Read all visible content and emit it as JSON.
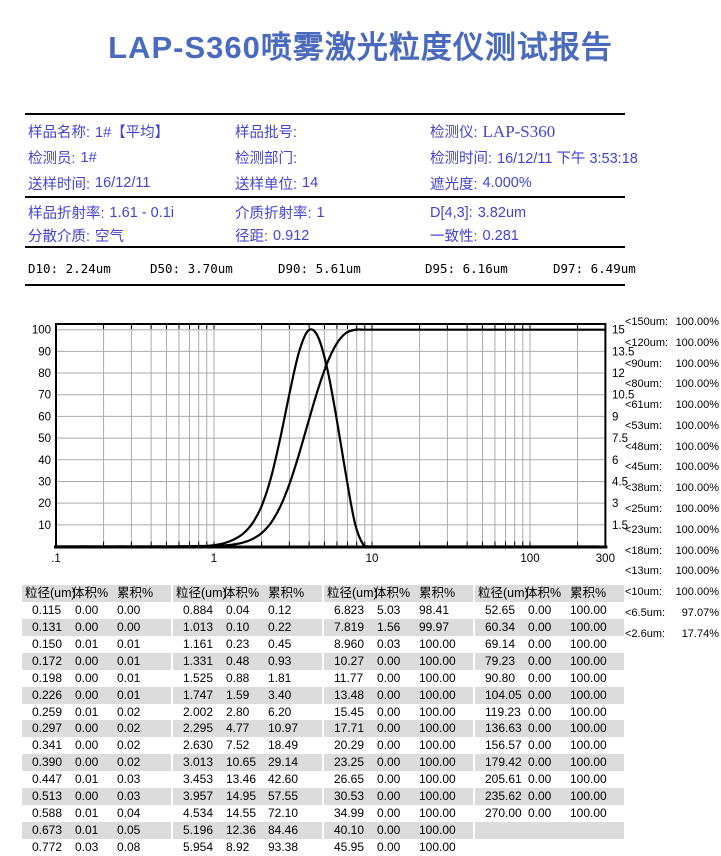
{
  "page": {
    "title": "LAP-S360喷雾激光粒度仪测试报告"
  },
  "colors": {
    "title_blue": "#4a6bbd",
    "info_text": "#4343d0",
    "grid_gray": "#ababab",
    "stripe_gray": "#dcdcdc",
    "curve_black": "#000000"
  },
  "info": {
    "rows": [
      [
        {
          "label": "样品名称:",
          "value": "1#【平均】"
        },
        {
          "label": "样品批号:",
          "value": ""
        },
        {
          "label": "检测仪:",
          "value": "LAP-S360",
          "serif": true
        }
      ],
      [
        {
          "label": "检测员:",
          "value": "1#"
        },
        {
          "label": "检测部门:",
          "value": ""
        },
        {
          "label": "检测时间:",
          "value": "16/12/11 下午 3:53:18"
        }
      ],
      [
        {
          "label": "送样时间:",
          "value": "16/12/11"
        },
        {
          "label": "送样单位:",
          "value": "14"
        },
        {
          "label": "遮光度:",
          "value": "4.000%"
        }
      ]
    ]
  },
  "optics": {
    "rows": [
      [
        {
          "label": "样品折射率:",
          "value": "1.61 - 0.1i"
        },
        {
          "label": "介质折射率:",
          "value": "1"
        },
        {
          "label": "D[4,3]:",
          "value": "3.82um"
        }
      ],
      [
        {
          "label": "分散介质:",
          "value": "空气"
        },
        {
          "label": "径距:",
          "value": "0.912"
        },
        {
          "label": "一致性:",
          "value": "0.281"
        }
      ]
    ]
  },
  "d_values": [
    {
      "label": "D10:",
      "value": "2.24um",
      "x": 28
    },
    {
      "label": "D50:",
      "value": "3.70um",
      "x": 150
    },
    {
      "label": "D90:",
      "value": "5.61um",
      "x": 278
    },
    {
      "label": "D95:",
      "value": "6.16um",
      "x": 425
    },
    {
      "label": "D97:",
      "value": "6.49um",
      "x": 553
    }
  ],
  "chart_data": {
    "type": "line",
    "title": "",
    "x_axis": {
      "scale": "log",
      "min": 0.1,
      "max": 300,
      "ticks": [
        0.1,
        1,
        10,
        100,
        300
      ],
      "tick_labels": [
        ".1",
        "1",
        "10",
        "100",
        "300"
      ],
      "grid": true
    },
    "y_left": {
      "min": 0,
      "max": 102.7,
      "ticks": [
        10,
        20,
        30,
        40,
        50,
        60,
        70,
        80,
        90,
        100
      ],
      "grid": true
    },
    "y_right": {
      "min": 0,
      "max": 15.4,
      "ticks": [
        1.5,
        3,
        4.5,
        6,
        7.5,
        9,
        10.5,
        12,
        13.5,
        15
      ]
    },
    "x": [
      0.115,
      0.131,
      0.15,
      0.172,
      0.198,
      0.226,
      0.259,
      0.297,
      0.341,
      0.39,
      0.447,
      0.513,
      0.588,
      0.673,
      0.772,
      0.884,
      1.013,
      1.161,
      1.331,
      1.525,
      1.747,
      2.002,
      2.295,
      2.63,
      3.013,
      3.453,
      3.957,
      4.534,
      5.196,
      5.954,
      6.823,
      7.819,
      8.96,
      10.27,
      11.77,
      13.48,
      15.45,
      17.71,
      20.29,
      23.25,
      26.65,
      30.53,
      34.99,
      40.1,
      45.95,
      52.65,
      60.34,
      69.14,
      79.23,
      90.8,
      104.05,
      119.23,
      136.63,
      156.57,
      179.42,
      205.61,
      235.62,
      270.0
    ],
    "series": [
      {
        "name": "cumulative_percent",
        "axis": "left",
        "values": [
          0,
          0,
          0.01,
          0.01,
          0.01,
          0.01,
          0.02,
          0.02,
          0.02,
          0.02,
          0.03,
          0.03,
          0.04,
          0.05,
          0.08,
          0.12,
          0.22,
          0.45,
          0.93,
          1.81,
          3.4,
          6.2,
          10.97,
          18.49,
          29.14,
          42.6,
          57.55,
          72.1,
          84.46,
          93.38,
          98.41,
          99.97,
          100,
          100,
          100,
          100,
          100,
          100,
          100,
          100,
          100,
          100,
          100,
          100,
          100,
          100,
          100,
          100,
          100,
          100,
          100,
          100,
          100,
          100,
          100,
          100,
          100,
          100
        ]
      },
      {
        "name": "volume_percent",
        "axis": "right",
        "values": [
          0,
          0,
          0.01,
          0,
          0,
          0,
          0.01,
          0,
          0,
          0,
          0.01,
          0,
          0.01,
          0.01,
          0.03,
          0.04,
          0.1,
          0.23,
          0.48,
          0.88,
          1.59,
          2.8,
          4.77,
          7.52,
          10.65,
          13.46,
          14.95,
          14.55,
          12.36,
          8.92,
          5.03,
          1.56,
          0.03,
          0,
          0,
          0,
          0,
          0,
          0,
          0,
          0,
          0,
          0,
          0,
          0,
          0,
          0,
          0,
          0,
          0,
          0,
          0,
          0,
          0,
          0,
          0,
          0,
          0
        ]
      }
    ]
  },
  "percentiles": [
    {
      "label": "<150um:",
      "value": "100.00%"
    },
    {
      "label": "<120um:",
      "value": "100.00%"
    },
    {
      "label": "<90um:",
      "value": "100.00%"
    },
    {
      "label": "<80um:",
      "value": "100.00%"
    },
    {
      "label": "<61um:",
      "value": "100.00%"
    },
    {
      "label": "<53um:",
      "value": "100.00%"
    },
    {
      "label": "<48um:",
      "value": "100.00%"
    },
    {
      "label": "<45um:",
      "value": "100.00%"
    },
    {
      "label": "<38um:",
      "value": "100.00%"
    },
    {
      "label": "<25um:",
      "value": "100.00%"
    },
    {
      "label": "<23um:",
      "value": "100.00%"
    },
    {
      "label": "<18um:",
      "value": "100.00%"
    },
    {
      "label": "<13um:",
      "value": "100.00%"
    },
    {
      "label": "<10um:",
      "value": "100.00%"
    },
    {
      "label": "<6.5um:",
      "value": "97.07%"
    },
    {
      "label": "<2.6um:",
      "value": "17.74%"
    }
  ],
  "tables": {
    "headers": [
      "粒径(um)",
      "体积%",
      "累积%"
    ],
    "groups": [
      [
        [
          "0.115",
          "0.00",
          "0.00"
        ],
        [
          "0.131",
          "0.00",
          "0.00"
        ],
        [
          "0.150",
          "0.01",
          "0.01"
        ],
        [
          "0.172",
          "0.00",
          "0.01"
        ],
        [
          "0.198",
          "0.00",
          "0.01"
        ],
        [
          "0.226",
          "0.00",
          "0.01"
        ],
        [
          "0.259",
          "0.01",
          "0.02"
        ],
        [
          "0.297",
          "0.00",
          "0.02"
        ],
        [
          "0.341",
          "0.00",
          "0.02"
        ],
        [
          "0.390",
          "0.00",
          "0.02"
        ],
        [
          "0.447",
          "0.01",
          "0.03"
        ],
        [
          "0.513",
          "0.00",
          "0.03"
        ],
        [
          "0.588",
          "0.01",
          "0.04"
        ],
        [
          "0.673",
          "0.01",
          "0.05"
        ],
        [
          "0.772",
          "0.03",
          "0.08"
        ]
      ],
      [
        [
          "0.884",
          "0.04",
          "0.12"
        ],
        [
          "1.013",
          "0.10",
          "0.22"
        ],
        [
          "1.161",
          "0.23",
          "0.45"
        ],
        [
          "1.331",
          "0.48",
          "0.93"
        ],
        [
          "1.525",
          "0.88",
          "1.81"
        ],
        [
          "1.747",
          "1.59",
          "3.40"
        ],
        [
          "2.002",
          "2.80",
          "6.20"
        ],
        [
          "2.295",
          "4.77",
          "10.97"
        ],
        [
          "2.630",
          "7.52",
          "18.49"
        ],
        [
          "3.013",
          "10.65",
          "29.14"
        ],
        [
          "3.453",
          "13.46",
          "42.60"
        ],
        [
          "3.957",
          "14.95",
          "57.55"
        ],
        [
          "4.534",
          "14.55",
          "72.10"
        ],
        [
          "5.196",
          "12.36",
          "84.46"
        ],
        [
          "5.954",
          "8.92",
          "93.38"
        ]
      ],
      [
        [
          "6.823",
          "5.03",
          "98.41"
        ],
        [
          "7.819",
          "1.56",
          "99.97"
        ],
        [
          "8.960",
          "0.03",
          "100.00"
        ],
        [
          "10.27",
          "0.00",
          "100.00"
        ],
        [
          "11.77",
          "0.00",
          "100.00"
        ],
        [
          "13.48",
          "0.00",
          "100.00"
        ],
        [
          "15.45",
          "0.00",
          "100.00"
        ],
        [
          "17.71",
          "0.00",
          "100.00"
        ],
        [
          "20.29",
          "0.00",
          "100.00"
        ],
        [
          "23.25",
          "0.00",
          "100.00"
        ],
        [
          "26.65",
          "0.00",
          "100.00"
        ],
        [
          "30.53",
          "0.00",
          "100.00"
        ],
        [
          "34.99",
          "0.00",
          "100.00"
        ],
        [
          "40.10",
          "0.00",
          "100.00"
        ],
        [
          "45.95",
          "0.00",
          "100.00"
        ]
      ],
      [
        [
          "52.65",
          "0.00",
          "100.00"
        ],
        [
          "60.34",
          "0.00",
          "100.00"
        ],
        [
          "69.14",
          "0.00",
          "100.00"
        ],
        [
          "79.23",
          "0.00",
          "100.00"
        ],
        [
          "90.80",
          "0.00",
          "100.00"
        ],
        [
          "104.05",
          "0.00",
          "100.00"
        ],
        [
          "119.23",
          "0.00",
          "100.00"
        ],
        [
          "136.63",
          "0.00",
          "100.00"
        ],
        [
          "156.57",
          "0.00",
          "100.00"
        ],
        [
          "179.42",
          "0.00",
          "100.00"
        ],
        [
          "205.61",
          "0.00",
          "100.00"
        ],
        [
          "235.62",
          "0.00",
          "100.00"
        ],
        [
          "270.00",
          "0.00",
          "100.00"
        ]
      ]
    ]
  }
}
